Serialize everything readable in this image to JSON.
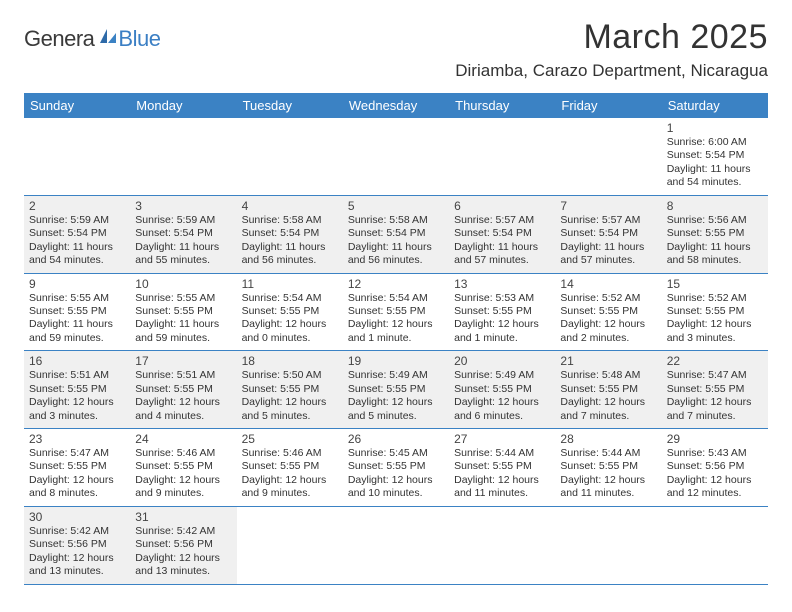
{
  "brand": {
    "part1": "Genera",
    "part2": "Blue"
  },
  "title": "March 2025",
  "location": "Diriamba, Carazo Department, Nicaragua",
  "colors": {
    "header_bg": "#3b82c4",
    "header_fg": "#ffffff",
    "rule": "#3b82c4",
    "shaded_bg": "#f0f0f0",
    "text": "#333333",
    "brand_blue": "#3b7fc4"
  },
  "typography": {
    "title_fontsize": 34,
    "location_fontsize": 17,
    "header_fontsize": 13,
    "daynum_fontsize": 12,
    "cell_fontsize": 10.5
  },
  "calendar": {
    "columns": [
      "Sunday",
      "Monday",
      "Tuesday",
      "Wednesday",
      "Thursday",
      "Friday",
      "Saturday"
    ],
    "weeks": [
      [
        {
          "day": "",
          "sunrise": "",
          "sunset": "",
          "daylight": "",
          "shaded": false
        },
        {
          "day": "",
          "sunrise": "",
          "sunset": "",
          "daylight": "",
          "shaded": false
        },
        {
          "day": "",
          "sunrise": "",
          "sunset": "",
          "daylight": "",
          "shaded": false
        },
        {
          "day": "",
          "sunrise": "",
          "sunset": "",
          "daylight": "",
          "shaded": false
        },
        {
          "day": "",
          "sunrise": "",
          "sunset": "",
          "daylight": "",
          "shaded": false
        },
        {
          "day": "",
          "sunrise": "",
          "sunset": "",
          "daylight": "",
          "shaded": false
        },
        {
          "day": "1",
          "sunrise": "Sunrise: 6:00 AM",
          "sunset": "Sunset: 5:54 PM",
          "daylight": "Daylight: 11 hours and 54 minutes.",
          "shaded": false
        }
      ],
      [
        {
          "day": "2",
          "sunrise": "Sunrise: 5:59 AM",
          "sunset": "Sunset: 5:54 PM",
          "daylight": "Daylight: 11 hours and 54 minutes.",
          "shaded": true
        },
        {
          "day": "3",
          "sunrise": "Sunrise: 5:59 AM",
          "sunset": "Sunset: 5:54 PM",
          "daylight": "Daylight: 11 hours and 55 minutes.",
          "shaded": true
        },
        {
          "day": "4",
          "sunrise": "Sunrise: 5:58 AM",
          "sunset": "Sunset: 5:54 PM",
          "daylight": "Daylight: 11 hours and 56 minutes.",
          "shaded": true
        },
        {
          "day": "5",
          "sunrise": "Sunrise: 5:58 AM",
          "sunset": "Sunset: 5:54 PM",
          "daylight": "Daylight: 11 hours and 56 minutes.",
          "shaded": true
        },
        {
          "day": "6",
          "sunrise": "Sunrise: 5:57 AM",
          "sunset": "Sunset: 5:54 PM",
          "daylight": "Daylight: 11 hours and 57 minutes.",
          "shaded": true
        },
        {
          "day": "7",
          "sunrise": "Sunrise: 5:57 AM",
          "sunset": "Sunset: 5:54 PM",
          "daylight": "Daylight: 11 hours and 57 minutes.",
          "shaded": true
        },
        {
          "day": "8",
          "sunrise": "Sunrise: 5:56 AM",
          "sunset": "Sunset: 5:55 PM",
          "daylight": "Daylight: 11 hours and 58 minutes.",
          "shaded": true
        }
      ],
      [
        {
          "day": "9",
          "sunrise": "Sunrise: 5:55 AM",
          "sunset": "Sunset: 5:55 PM",
          "daylight": "Daylight: 11 hours and 59 minutes.",
          "shaded": false
        },
        {
          "day": "10",
          "sunrise": "Sunrise: 5:55 AM",
          "sunset": "Sunset: 5:55 PM",
          "daylight": "Daylight: 11 hours and 59 minutes.",
          "shaded": false
        },
        {
          "day": "11",
          "sunrise": "Sunrise: 5:54 AM",
          "sunset": "Sunset: 5:55 PM",
          "daylight": "Daylight: 12 hours and 0 minutes.",
          "shaded": false
        },
        {
          "day": "12",
          "sunrise": "Sunrise: 5:54 AM",
          "sunset": "Sunset: 5:55 PM",
          "daylight": "Daylight: 12 hours and 1 minute.",
          "shaded": false
        },
        {
          "day": "13",
          "sunrise": "Sunrise: 5:53 AM",
          "sunset": "Sunset: 5:55 PM",
          "daylight": "Daylight: 12 hours and 1 minute.",
          "shaded": false
        },
        {
          "day": "14",
          "sunrise": "Sunrise: 5:52 AM",
          "sunset": "Sunset: 5:55 PM",
          "daylight": "Daylight: 12 hours and 2 minutes.",
          "shaded": false
        },
        {
          "day": "15",
          "sunrise": "Sunrise: 5:52 AM",
          "sunset": "Sunset: 5:55 PM",
          "daylight": "Daylight: 12 hours and 3 minutes.",
          "shaded": false
        }
      ],
      [
        {
          "day": "16",
          "sunrise": "Sunrise: 5:51 AM",
          "sunset": "Sunset: 5:55 PM",
          "daylight": "Daylight: 12 hours and 3 minutes.",
          "shaded": true
        },
        {
          "day": "17",
          "sunrise": "Sunrise: 5:51 AM",
          "sunset": "Sunset: 5:55 PM",
          "daylight": "Daylight: 12 hours and 4 minutes.",
          "shaded": true
        },
        {
          "day": "18",
          "sunrise": "Sunrise: 5:50 AM",
          "sunset": "Sunset: 5:55 PM",
          "daylight": "Daylight: 12 hours and 5 minutes.",
          "shaded": true
        },
        {
          "day": "19",
          "sunrise": "Sunrise: 5:49 AM",
          "sunset": "Sunset: 5:55 PM",
          "daylight": "Daylight: 12 hours and 5 minutes.",
          "shaded": true
        },
        {
          "day": "20",
          "sunrise": "Sunrise: 5:49 AM",
          "sunset": "Sunset: 5:55 PM",
          "daylight": "Daylight: 12 hours and 6 minutes.",
          "shaded": true
        },
        {
          "day": "21",
          "sunrise": "Sunrise: 5:48 AM",
          "sunset": "Sunset: 5:55 PM",
          "daylight": "Daylight: 12 hours and 7 minutes.",
          "shaded": true
        },
        {
          "day": "22",
          "sunrise": "Sunrise: 5:47 AM",
          "sunset": "Sunset: 5:55 PM",
          "daylight": "Daylight: 12 hours and 7 minutes.",
          "shaded": true
        }
      ],
      [
        {
          "day": "23",
          "sunrise": "Sunrise: 5:47 AM",
          "sunset": "Sunset: 5:55 PM",
          "daylight": "Daylight: 12 hours and 8 minutes.",
          "shaded": false
        },
        {
          "day": "24",
          "sunrise": "Sunrise: 5:46 AM",
          "sunset": "Sunset: 5:55 PM",
          "daylight": "Daylight: 12 hours and 9 minutes.",
          "shaded": false
        },
        {
          "day": "25",
          "sunrise": "Sunrise: 5:46 AM",
          "sunset": "Sunset: 5:55 PM",
          "daylight": "Daylight: 12 hours and 9 minutes.",
          "shaded": false
        },
        {
          "day": "26",
          "sunrise": "Sunrise: 5:45 AM",
          "sunset": "Sunset: 5:55 PM",
          "daylight": "Daylight: 12 hours and 10 minutes.",
          "shaded": false
        },
        {
          "day": "27",
          "sunrise": "Sunrise: 5:44 AM",
          "sunset": "Sunset: 5:55 PM",
          "daylight": "Daylight: 12 hours and 11 minutes.",
          "shaded": false
        },
        {
          "day": "28",
          "sunrise": "Sunrise: 5:44 AM",
          "sunset": "Sunset: 5:55 PM",
          "daylight": "Daylight: 12 hours and 11 minutes.",
          "shaded": false
        },
        {
          "day": "29",
          "sunrise": "Sunrise: 5:43 AM",
          "sunset": "Sunset: 5:56 PM",
          "daylight": "Daylight: 12 hours and 12 minutes.",
          "shaded": false
        }
      ],
      [
        {
          "day": "30",
          "sunrise": "Sunrise: 5:42 AM",
          "sunset": "Sunset: 5:56 PM",
          "daylight": "Daylight: 12 hours and 13 minutes.",
          "shaded": true
        },
        {
          "day": "31",
          "sunrise": "Sunrise: 5:42 AM",
          "sunset": "Sunset: 5:56 PM",
          "daylight": "Daylight: 12 hours and 13 minutes.",
          "shaded": true
        },
        {
          "day": "",
          "sunrise": "",
          "sunset": "",
          "daylight": "",
          "shaded": false
        },
        {
          "day": "",
          "sunrise": "",
          "sunset": "",
          "daylight": "",
          "shaded": false
        },
        {
          "day": "",
          "sunrise": "",
          "sunset": "",
          "daylight": "",
          "shaded": false
        },
        {
          "day": "",
          "sunrise": "",
          "sunset": "",
          "daylight": "",
          "shaded": false
        },
        {
          "day": "",
          "sunrise": "",
          "sunset": "",
          "daylight": "",
          "shaded": false
        }
      ]
    ]
  }
}
